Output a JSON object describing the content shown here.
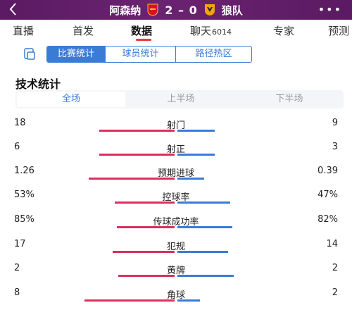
{
  "header": {
    "back_icon": "chevron-left-icon",
    "home_team": "阿森纳",
    "away_team": "狼队",
    "score": "2 – 0",
    "more_icon": "more-dots-icon",
    "home_badge_color": "#d6102b",
    "away_badge_color": "#f5a30a"
  },
  "tabs": [
    {
      "label": "直播"
    },
    {
      "label": "首发"
    },
    {
      "label": "数据"
    },
    {
      "label": "聊天",
      "count": "6014"
    },
    {
      "label": "专家"
    },
    {
      "label": "预测"
    }
  ],
  "active_tab": "数据",
  "subtabs": [
    "比赛统计",
    "球员统计",
    "路径热区"
  ],
  "section_title": "技术统计",
  "periods": [
    "全场",
    "上半场",
    "下半场"
  ],
  "stats": [
    {
      "name": "射门",
      "home": "18",
      "away": "9",
      "home_share": 0.67,
      "away_share": 0.33
    },
    {
      "name": "射正",
      "home": "6",
      "away": "3",
      "home_share": 0.67,
      "away_share": 0.33
    },
    {
      "name": "预期进球",
      "home": "1.26",
      "away": "0.39",
      "home_share": 0.76,
      "away_share": 0.24
    },
    {
      "name": "控球率",
      "home": "53%",
      "away": "47%",
      "home_share": 0.53,
      "away_share": 0.47
    },
    {
      "name": "传球成功率",
      "home": "85%",
      "away": "82%",
      "home_share": 0.51,
      "away_share": 0.49
    },
    {
      "name": "犯规",
      "home": "17",
      "away": "14",
      "home_share": 0.55,
      "away_share": 0.45
    },
    {
      "name": "黄牌",
      "home": "2",
      "away": "2",
      "home_share": 0.5,
      "away_share": 0.5
    },
    {
      "name": "角球",
      "home": "8",
      "away": "2",
      "home_share": 0.8,
      "away_share": 0.2
    }
  ],
  "colors": {
    "home": "#d6325c",
    "away": "#3a7bd5",
    "header_bg": "#5b1a63"
  }
}
